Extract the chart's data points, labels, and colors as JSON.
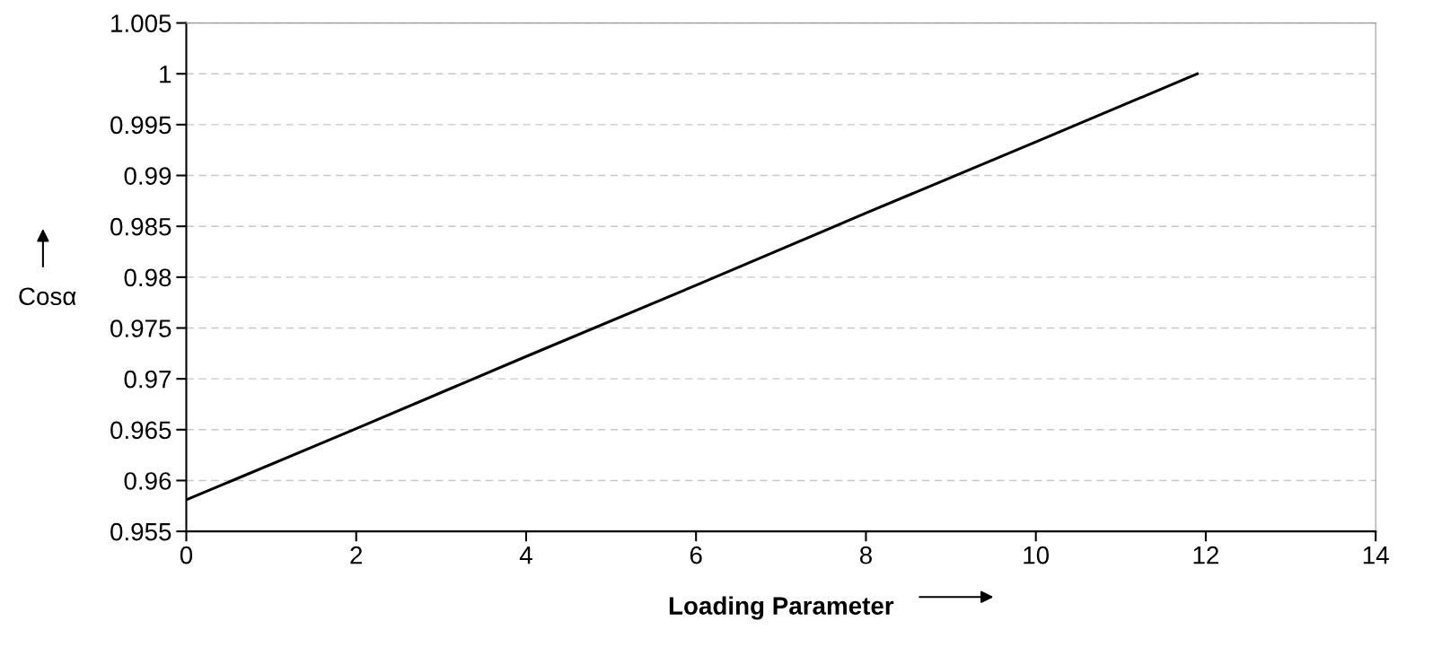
{
  "chart_data": {
    "type": "line",
    "xlabel": "Loading Parameter",
    "ylabel": "Cosα",
    "series": [
      {
        "color": "#000000",
        "x": [
          0,
          2,
          4,
          6,
          8,
          10,
          11.9
        ],
        "values": [
          0.9581,
          0.9651,
          0.9722,
          0.9792,
          0.9863,
          0.9933,
          1.0
        ]
      }
    ],
    "xlim": [
      0,
      14
    ],
    "xticks": [
      0,
      2,
      4,
      6,
      8,
      10,
      12,
      14
    ],
    "ylim": [
      0.955,
      1.005
    ],
    "yticks": [
      0.955,
      0.96,
      0.965,
      0.97,
      0.975,
      0.98,
      0.985,
      0.99,
      0.995,
      1,
      1.005
    ],
    "grid": "y",
    "marker": "none",
    "line_style": "solid"
  }
}
